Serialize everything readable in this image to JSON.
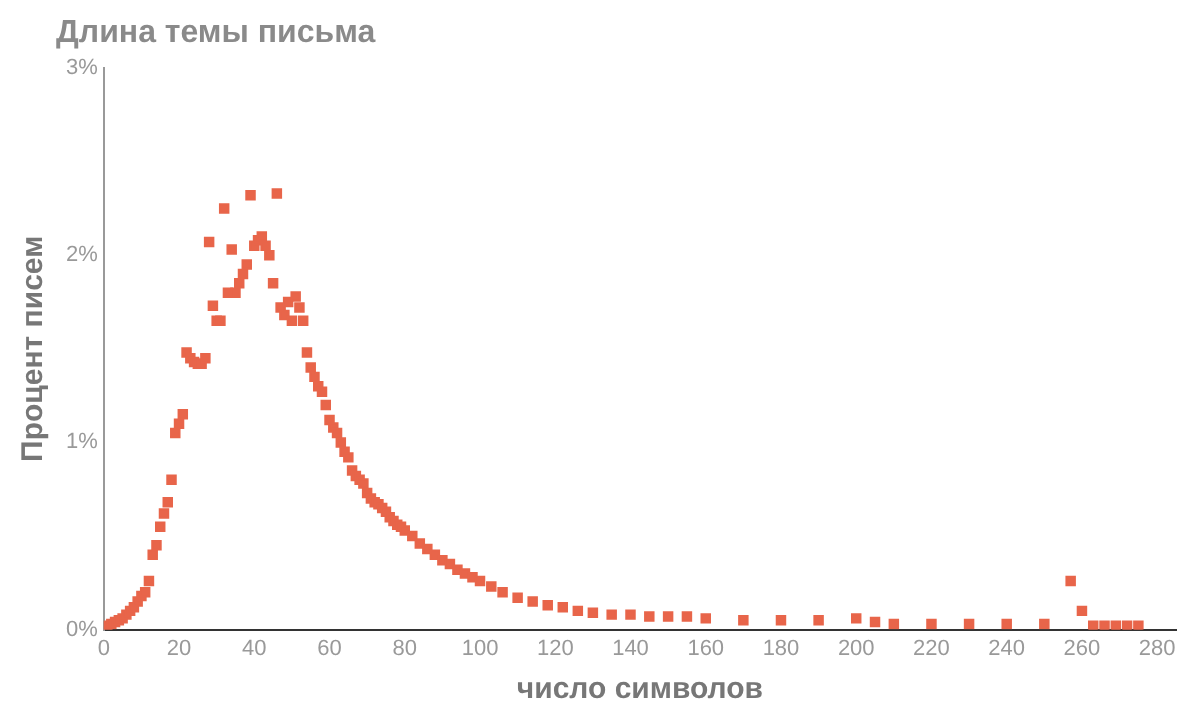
{
  "chart_data": {
    "type": "scatter",
    "title": "Длина темы письма",
    "xlabel": "число символов",
    "ylabel": "Процент писем",
    "marker": "square",
    "grid": false,
    "legend": false,
    "xlim": [
      0,
      285
    ],
    "xticks": [
      0,
      20,
      40,
      60,
      80,
      100,
      120,
      140,
      160,
      180,
      200,
      220,
      240,
      260,
      280
    ],
    "ylim": [
      0,
      3
    ],
    "yticks": [
      {
        "value": 0,
        "label": "0%"
      },
      {
        "value": 1,
        "label": "1%"
      },
      {
        "value": 2,
        "label": "2%"
      },
      {
        "value": 3,
        "label": "3%"
      }
    ],
    "series": [
      {
        "color": "#e8654a",
        "x": [
          1,
          2,
          3,
          4,
          5,
          6,
          7,
          8,
          9,
          10,
          11,
          12,
          13,
          14,
          15,
          16,
          17,
          18,
          19,
          20,
          21,
          22,
          23,
          24,
          25,
          26,
          27,
          28,
          29,
          30,
          31,
          32,
          33,
          34,
          35,
          36,
          37,
          38,
          39,
          40,
          41,
          42,
          43,
          44,
          45,
          46,
          47,
          48,
          49,
          50,
          51,
          52,
          53,
          54,
          55,
          56,
          57,
          58,
          59,
          60,
          61,
          62,
          63,
          64,
          65,
          66,
          67,
          68,
          69,
          70,
          71,
          72,
          73,
          74,
          75,
          76,
          77,
          78,
          79,
          80,
          82,
          84,
          86,
          88,
          90,
          92,
          94,
          96,
          98,
          100,
          103,
          106,
          110,
          114,
          118,
          122,
          126,
          130,
          135,
          140,
          145,
          150,
          155,
          160,
          170,
          180,
          190,
          200,
          205,
          210,
          220,
          230,
          240,
          250,
          257,
          260,
          263,
          266,
          269,
          272,
          275
        ],
        "values": [
          0.02,
          0.03,
          0.04,
          0.05,
          0.06,
          0.08,
          0.1,
          0.12,
          0.15,
          0.18,
          0.2,
          0.26,
          0.4,
          0.45,
          0.55,
          0.62,
          0.68,
          0.8,
          1.05,
          1.1,
          1.15,
          1.48,
          1.45,
          1.43,
          1.42,
          1.42,
          1.45,
          2.07,
          1.73,
          1.65,
          1.65,
          2.25,
          1.8,
          2.03,
          1.8,
          1.85,
          1.9,
          1.95,
          2.32,
          2.05,
          2.08,
          2.1,
          2.05,
          2.0,
          1.85,
          2.33,
          1.72,
          1.68,
          1.75,
          1.65,
          1.78,
          1.72,
          1.65,
          1.48,
          1.4,
          1.35,
          1.3,
          1.27,
          1.2,
          1.12,
          1.08,
          1.05,
          1.0,
          0.95,
          0.92,
          0.85,
          0.82,
          0.8,
          0.78,
          0.73,
          0.7,
          0.68,
          0.67,
          0.65,
          0.63,
          0.6,
          0.58,
          0.56,
          0.55,
          0.53,
          0.5,
          0.46,
          0.43,
          0.4,
          0.37,
          0.35,
          0.32,
          0.3,
          0.28,
          0.26,
          0.23,
          0.2,
          0.17,
          0.15,
          0.13,
          0.12,
          0.1,
          0.09,
          0.08,
          0.08,
          0.07,
          0.07,
          0.07,
          0.06,
          0.05,
          0.05,
          0.05,
          0.06,
          0.04,
          0.03,
          0.03,
          0.03,
          0.03,
          0.03,
          0.26,
          0.1,
          0.02,
          0.02,
          0.02,
          0.02,
          0.02
        ]
      }
    ]
  }
}
